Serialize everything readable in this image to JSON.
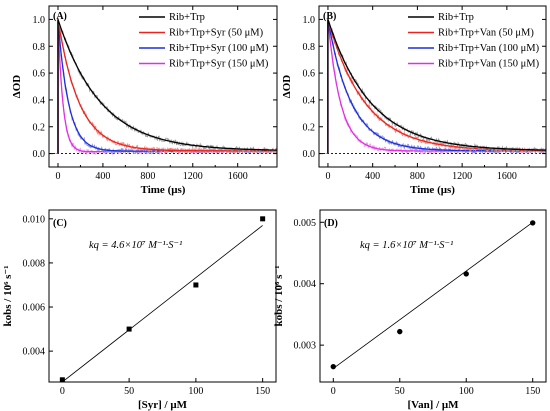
{
  "chart_data": [
    {
      "panel": "(A)",
      "type": "line",
      "xlabel": "Time (μs)",
      "ylabel": "ΔOD",
      "xlim": [
        -80,
        1950
      ],
      "ylim": [
        -0.1,
        1.1
      ],
      "xticks": [
        0,
        400,
        800,
        1200,
        1600
      ],
      "yticks": [
        0.0,
        0.2,
        0.4,
        0.6,
        0.8,
        1.0
      ],
      "dashed_baseline": 0,
      "legend_position": "top-right",
      "series": [
        {
          "name": "Rib+Trp",
          "color": "#000000",
          "noise": "#9a9a9a",
          "tau": 380,
          "x": [
            0,
            100,
            200,
            400,
            600,
            800,
            1000,
            1200,
            1600,
            1900
          ],
          "y": [
            1.0,
            0.76,
            0.58,
            0.35,
            0.21,
            0.14,
            0.09,
            0.06,
            0.03,
            0.02
          ]
        },
        {
          "name": "Rib+Trp+Syr (50 μM)",
          "color": "#e8261f",
          "noise": "#f28a85",
          "tau": 190,
          "x": [
            0,
            100,
            200,
            400,
            600,
            800,
            1000,
            1900
          ],
          "y": [
            1.0,
            0.59,
            0.35,
            0.12,
            0.05,
            0.03,
            0.02,
            0.02
          ]
        },
        {
          "name": "Rib+Trp+Syr (100 μM)",
          "color": "#1f2fd6",
          "noise": "#8a93e6",
          "tau": 95,
          "x": [
            0,
            100,
            200,
            400,
            600,
            1900
          ],
          "y": [
            1.0,
            0.36,
            0.14,
            0.04,
            0.03,
            0.03
          ]
        },
        {
          "name": "Rib+Trp+Syr (150 μM)",
          "color": "#e030e0",
          "noise": "#ee9aee",
          "tau": 45,
          "x": [
            0,
            50,
            100,
            200,
            400,
            1900
          ],
          "y": [
            1.0,
            0.34,
            0.12,
            0.04,
            0.02,
            0.02
          ]
        }
      ]
    },
    {
      "panel": "(B)",
      "type": "line",
      "xlabel": "Time (μs)",
      "ylabel": "ΔOD",
      "xlim": [
        -80,
        1950
      ],
      "ylim": [
        -0.1,
        1.1
      ],
      "xticks": [
        0,
        400,
        800,
        1200,
        1600
      ],
      "yticks": [
        0.0,
        0.2,
        0.4,
        0.6,
        0.8,
        1.0
      ],
      "dashed_baseline": 0,
      "legend_position": "top-right",
      "series": [
        {
          "name": "Rib+Trp",
          "color": "#000000",
          "noise": "#9a9a9a",
          "tau": 380,
          "x": [
            0,
            100,
            200,
            400,
            600,
            800,
            1000,
            1200,
            1600,
            1900
          ],
          "y": [
            1.0,
            0.76,
            0.58,
            0.35,
            0.21,
            0.14,
            0.09,
            0.06,
            0.03,
            0.02
          ]
        },
        {
          "name": "Rib+Trp+Van (50 μM)",
          "color": "#e8261f",
          "noise": "#f28a85",
          "tau": 330,
          "x": [
            0,
            100,
            200,
            400,
            600,
            800,
            1200,
            1900
          ],
          "y": [
            1.0,
            0.74,
            0.55,
            0.3,
            0.17,
            0.1,
            0.04,
            0.02
          ]
        },
        {
          "name": "Rib+Trp+Van (100 μM)",
          "color": "#1f2fd6",
          "noise": "#8a93e6",
          "tau": 210,
          "x": [
            0,
            100,
            200,
            400,
            600,
            800,
            1900
          ],
          "y": [
            1.0,
            0.62,
            0.39,
            0.15,
            0.06,
            0.03,
            0.02
          ]
        },
        {
          "name": "Rib+Trp+Van (150 μM)",
          "color": "#e030e0",
          "noise": "#ee9aee",
          "tau": 115,
          "x": [
            0,
            100,
            200,
            400,
            600,
            1900
          ],
          "y": [
            1.0,
            0.42,
            0.18,
            0.04,
            0.02,
            0.02
          ]
        }
      ]
    },
    {
      "panel": "(C)",
      "type": "scatter",
      "xlabel": "[Syr] / μM",
      "ylabel": "kobs / 10⁶ s⁻¹",
      "annotation": "kq = 4.6×10⁷ M⁻¹·S⁻¹",
      "xlim": [
        -10,
        160
      ],
      "ylim": [
        0.0026,
        0.0104
      ],
      "xticks": [
        0,
        50,
        100,
        150
      ],
      "yticks": [
        0.004,
        0.006,
        0.008,
        0.01
      ],
      "ytick_labels": [
        "0.004",
        "0.006",
        "0.008",
        "0.010"
      ],
      "marker": "square",
      "x": [
        0,
        50,
        100,
        150
      ],
      "y": [
        0.0027,
        0.005,
        0.007,
        0.01
      ],
      "fit": {
        "x": [
          0,
          150
        ],
        "y": [
          0.0026,
          0.0097
        ]
      }
    },
    {
      "panel": "(D)",
      "type": "scatter",
      "xlabel": "[Van] / μM",
      "ylabel": "kobs / 10⁶ s⁻¹",
      "annotation": "kq = 1.6×10⁷ M⁻¹·S⁻¹",
      "xlim": [
        -10,
        160
      ],
      "ylim": [
        0.0024,
        0.0052
      ],
      "xticks": [
        0,
        50,
        100,
        150
      ],
      "yticks": [
        0.003,
        0.004,
        0.005
      ],
      "ytick_labels": [
        "0.003",
        "0.004",
        "0.005"
      ],
      "marker": "circle",
      "x": [
        0,
        50,
        100,
        150
      ],
      "y": [
        0.00265,
        0.00322,
        0.00416,
        0.00499
      ],
      "fit": {
        "x": [
          0,
          150
        ],
        "y": [
          0.00262,
          0.005
        ]
      }
    }
  ]
}
